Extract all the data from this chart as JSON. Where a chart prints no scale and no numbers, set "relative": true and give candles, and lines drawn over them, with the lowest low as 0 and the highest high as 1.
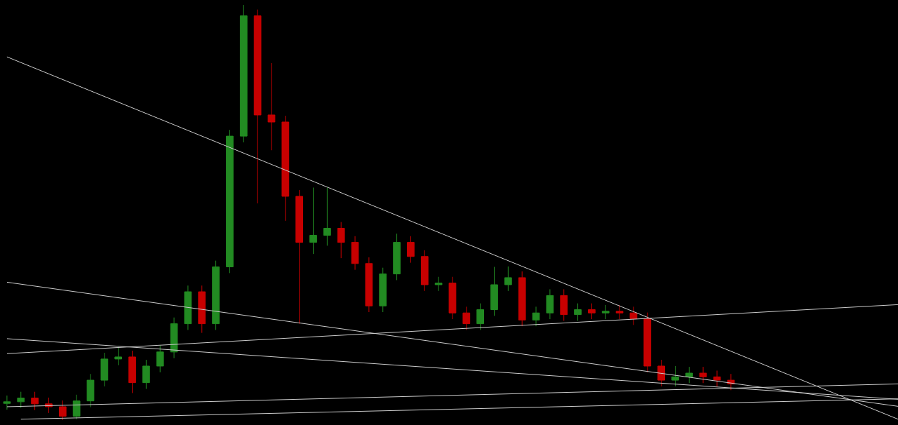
{
  "chart_data": {
    "type": "candlestick",
    "relative": true,
    "categories": [
      null,
      null,
      null,
      null,
      null,
      null,
      null,
      null,
      null,
      null,
      null,
      null,
      null,
      null,
      null,
      null,
      null,
      null,
      null,
      null,
      null,
      null,
      null,
      null,
      null,
      null,
      null,
      null,
      null,
      null,
      null,
      null,
      null,
      null,
      null,
      null,
      null,
      null,
      null,
      null,
      null,
      null,
      null,
      null,
      null,
      null,
      null,
      null,
      null,
      null,
      null,
      null,
      null,
      null,
      null,
      null,
      null,
      null,
      null,
      null,
      null,
      null,
      null,
      null,
      null
    ],
    "ohlc": [
      [
        0.04,
        0.059,
        0.025,
        0.044
      ],
      [
        0.044,
        0.068,
        0.029,
        0.053
      ],
      [
        0.053,
        0.068,
        0.024,
        0.039
      ],
      [
        0.039,
        0.054,
        0.017,
        0.032
      ],
      [
        0.032,
        0.047,
        0,
        0.009
      ],
      [
        0.009,
        0.061,
        0.002,
        0.046
      ],
      [
        0.046,
        0.111,
        0.031,
        0.096
      ],
      [
        0.096,
        0.162,
        0.081,
        0.147
      ],
      [
        0.147,
        0.176,
        0.132,
        0.152
      ],
      [
        0.152,
        0.167,
        0.065,
        0.09
      ],
      [
        0.09,
        0.145,
        0.075,
        0.13
      ],
      [
        0.13,
        0.179,
        0.115,
        0.164
      ],
      [
        0.164,
        0.247,
        0.149,
        0.232
      ],
      [
        0.232,
        0.324,
        0.217,
        0.309
      ],
      [
        0.309,
        0.324,
        0.21,
        0.232
      ],
      [
        0.232,
        0.384,
        0.217,
        0.369
      ],
      [
        0.369,
        0.699,
        0.354,
        0.684
      ],
      [
        0.684,
        1,
        0.669,
        0.974
      ],
      [
        0.974,
        0.989,
        0.522,
        0.735
      ],
      [
        0.735,
        0.86,
        0.65,
        0.718
      ],
      [
        0.718,
        0.733,
        0.48,
        0.539
      ],
      [
        0.539,
        0.554,
        0.232,
        0.428
      ],
      [
        0.428,
        0.56,
        0.4,
        0.445
      ],
      [
        0.445,
        0.56,
        0.42,
        0.462
      ],
      [
        0.462,
        0.477,
        0.39,
        0.428
      ],
      [
        0.428,
        0.443,
        0.362,
        0.377
      ],
      [
        0.377,
        0.392,
        0.26,
        0.275
      ],
      [
        0.275,
        0.367,
        0.26,
        0.352
      ],
      [
        0.352,
        0.449,
        0.337,
        0.428
      ],
      [
        0.428,
        0.443,
        0.379,
        0.394
      ],
      [
        0.394,
        0.409,
        0.311,
        0.326
      ],
      [
        0.326,
        0.345,
        0.311,
        0.33
      ],
      [
        0.33,
        0.345,
        0.243,
        0.258
      ],
      [
        0.258,
        0.273,
        0.217,
        0.232
      ],
      [
        0.232,
        0.281,
        0.217,
        0.266
      ],
      [
        0.266,
        0.369,
        0.251,
        0.326
      ],
      [
        0.326,
        0.37,
        0.311,
        0.343
      ],
      [
        0.343,
        0.358,
        0.226,
        0.241
      ],
      [
        0.241,
        0.273,
        0.226,
        0.258
      ],
      [
        0.258,
        0.315,
        0.243,
        0.3
      ],
      [
        0.3,
        0.315,
        0.239,
        0.254
      ],
      [
        0.254,
        0.281,
        0.239,
        0.266
      ],
      [
        0.266,
        0.281,
        0.243,
        0.258
      ],
      [
        0.258,
        0.277,
        0.243,
        0.262
      ],
      [
        0.262,
        0.277,
        0.243,
        0.258
      ],
      [
        0.258,
        0.273,
        0.229,
        0.244
      ],
      [
        0.244,
        0.259,
        0.115,
        0.13
      ],
      [
        0.13,
        0.145,
        0.081,
        0.096
      ],
      [
        0.096,
        0.13,
        0.081,
        0.104
      ],
      [
        0.104,
        0.128,
        0.089,
        0.113
      ],
      [
        0.113,
        0.128,
        0.089,
        0.104
      ],
      [
        0.104,
        0.119,
        0.081,
        0.096
      ],
      [
        0.096,
        0.111,
        0.072,
        0.087
      ],
      null,
      null,
      null,
      null,
      null,
      null,
      null,
      null,
      null,
      null,
      null,
      null
    ],
    "colors": [
      "#228b22",
      "#228b22",
      "#c80000",
      "#c80000",
      "#c80000",
      "#228b22",
      "#228b22",
      "#228b22",
      "#228b22",
      "#c80000",
      "#228b22",
      "#228b22",
      "#228b22",
      "#228b22",
      "#c80000",
      "#228b22",
      "#228b22",
      "#228b22",
      "#c80000",
      "#c80000",
      "#c80000",
      "#c80000",
      "#228b22",
      "#228b22",
      "#c80000",
      "#c80000",
      "#c80000",
      "#228b22",
      "#228b22",
      "#c80000",
      "#c80000",
      "#228b22",
      "#c80000",
      "#c80000",
      "#228b22",
      "#228b22",
      "#228b22",
      "#c80000",
      "#228b22",
      "#228b22",
      "#c80000",
      "#228b22",
      "#c80000",
      "#228b22",
      "#c80000",
      "#c80000",
      "#c80000",
      "#c80000",
      "#228b22",
      "#228b22",
      "#c80000",
      "#c80000",
      "#c80000",
      null,
      null,
      null,
      null,
      null,
      null,
      null,
      null,
      null,
      null,
      null,
      null
    ],
    "series": [
      {
        "type": "line",
        "color": "#cccccc",
        "values": [
          0.875,
          null,
          null,
          null,
          null,
          null,
          null,
          null,
          null,
          null,
          null,
          null,
          null,
          null,
          null,
          null,
          null,
          null,
          null,
          null,
          null,
          null,
          null,
          null,
          null,
          null,
          null,
          null,
          null,
          null,
          null,
          null,
          null,
          null,
          null,
          null,
          null,
          null,
          null,
          null,
          null,
          null,
          null,
          null,
          null,
          null,
          null,
          null,
          null,
          null,
          null,
          null,
          null,
          null,
          null,
          null,
          null,
          null,
          null,
          null,
          null,
          null,
          null,
          null,
          0.002
        ]
      },
      {
        "type": "line",
        "color": "#cccccc",
        "values": [
          0.332,
          null,
          null,
          null,
          null,
          null,
          null,
          null,
          null,
          null,
          null,
          null,
          null,
          null,
          null,
          null,
          null,
          null,
          null,
          null,
          null,
          null,
          null,
          null,
          null,
          null,
          null,
          null,
          null,
          null,
          null,
          null,
          null,
          null,
          null,
          null,
          null,
          null,
          null,
          null,
          null,
          null,
          null,
          null,
          null,
          null,
          null,
          null,
          null,
          null,
          null,
          null,
          null,
          null,
          null,
          null,
          null,
          null,
          null,
          null,
          null,
          null,
          null,
          null,
          0.033
        ]
      },
      {
        "type": "line",
        "color": "#cccccc",
        "values": [
          0.196,
          null,
          null,
          null,
          null,
          null,
          null,
          null,
          null,
          null,
          null,
          null,
          null,
          null,
          null,
          null,
          null,
          null,
          null,
          null,
          null,
          null,
          null,
          null,
          null,
          null,
          null,
          null,
          null,
          null,
          null,
          null,
          null,
          null,
          null,
          null,
          null,
          null,
          null,
          null,
          null,
          null,
          null,
          null,
          null,
          null,
          null,
          null,
          null,
          null,
          null,
          null,
          null,
          null,
          null,
          null,
          null,
          null,
          null,
          null,
          null,
          null,
          null,
          null,
          0.05
        ]
      },
      {
        "type": "line",
        "color": "#cccccc",
        "values": [
          0.16,
          null,
          null,
          null,
          null,
          null,
          null,
          null,
          null,
          null,
          null,
          null,
          null,
          null,
          null,
          null,
          null,
          null,
          null,
          null,
          null,
          null,
          null,
          null,
          null,
          null,
          null,
          null,
          null,
          null,
          null,
          null,
          null,
          null,
          null,
          null,
          null,
          null,
          null,
          null,
          null,
          null,
          null,
          null,
          null,
          null,
          null,
          null,
          null,
          null,
          null,
          null,
          null,
          null,
          null,
          null,
          null,
          null,
          null,
          null,
          null,
          null,
          null,
          null,
          0.278
        ]
      },
      {
        "type": "line",
        "color": "#cccccc",
        "values": [
          0.032,
          null,
          null,
          null,
          null,
          null,
          null,
          null,
          null,
          null,
          null,
          null,
          null,
          null,
          null,
          null,
          null,
          null,
          null,
          null,
          null,
          null,
          null,
          null,
          null,
          null,
          null,
          null,
          null,
          null,
          null,
          null,
          null,
          null,
          null,
          null,
          null,
          null,
          null,
          null,
          null,
          null,
          null,
          null,
          null,
          null,
          null,
          null,
          null,
          null,
          null,
          null,
          null,
          null,
          null,
          null,
          null,
          null,
          null,
          null,
          null,
          null,
          null,
          null,
          0.087
        ]
      },
      {
        "type": "line",
        "color": "#cccccc",
        "values": [
          null,
          0.002,
          null,
          null,
          null,
          null,
          null,
          null,
          null,
          null,
          null,
          null,
          null,
          null,
          null,
          null,
          null,
          null,
          null,
          null,
          null,
          null,
          null,
          null,
          null,
          null,
          null,
          null,
          null,
          null,
          null,
          null,
          null,
          null,
          null,
          null,
          null,
          null,
          null,
          null,
          null,
          null,
          null,
          null,
          null,
          null,
          null,
          null,
          null,
          null,
          null,
          null,
          null,
          null,
          null,
          null,
          null,
          null,
          null,
          null,
          null,
          null,
          null,
          null,
          0.051
        ]
      }
    ]
  }
}
